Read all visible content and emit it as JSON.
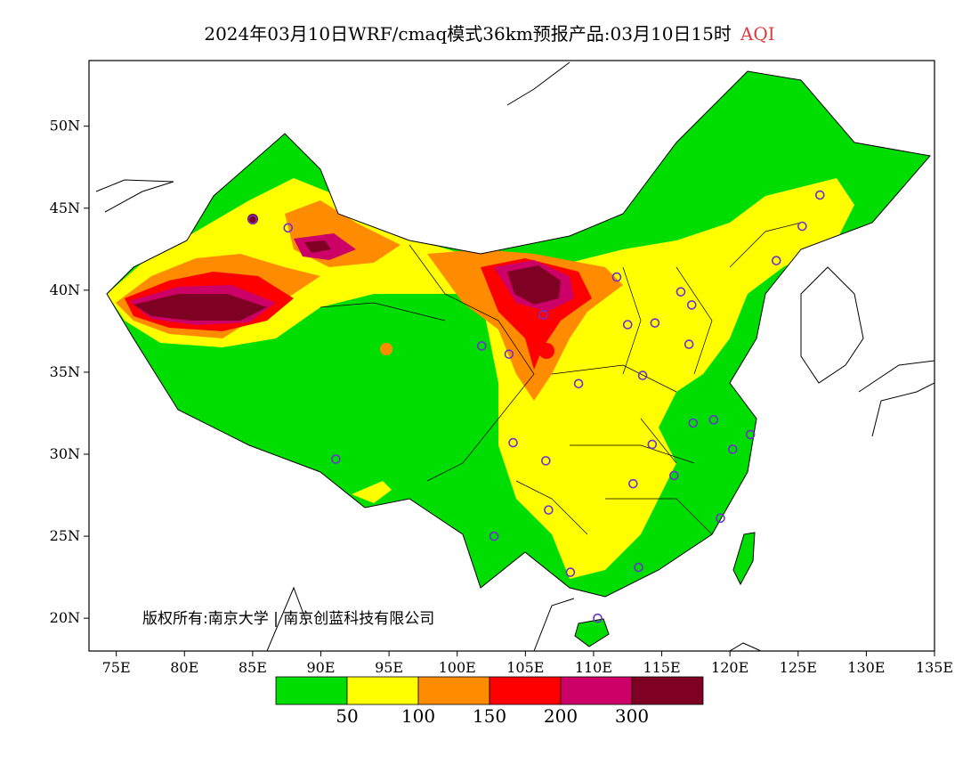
{
  "title": {
    "main": "2024年03月10日WRF/cmaq模式36km预报产品:03月10日15时",
    "variable": "AQI"
  },
  "axes": {
    "lon_labels": [
      "75E",
      "80E",
      "85E",
      "90E",
      "95E",
      "100E",
      "105E",
      "110E",
      "115E",
      "120E",
      "125E",
      "130E",
      "135E"
    ],
    "lat_labels": [
      "20N",
      "25N",
      "30N",
      "35N",
      "40N",
      "45N",
      "50N"
    ],
    "lon_range": [
      73,
      135
    ],
    "lat_range": [
      18,
      54
    ]
  },
  "copyright": "版权所有:南京大学 | 南京创蓝科技有限公司",
  "legend": {
    "colors": [
      "#00dd00",
      "#ffff00",
      "#ff8c00",
      "#ff0000",
      "#cc0066",
      "#7e0023"
    ],
    "labels": [
      "50",
      "100",
      "150",
      "200",
      "300"
    ]
  },
  "colors": {
    "good": "#00dd00",
    "moderate": "#ffff00",
    "usg": "#ff8c00",
    "unhealthy": "#ff0000",
    "very_unhealthy": "#cc0066",
    "hazardous": "#7e0023",
    "station_marker": "#7030d0"
  },
  "stations": [
    {
      "lon": 87.6,
      "lat": 43.8
    },
    {
      "lon": 91.1,
      "lat": 29.7
    },
    {
      "lon": 101.8,
      "lat": 36.6
    },
    {
      "lon": 103.8,
      "lat": 36.1
    },
    {
      "lon": 106.3,
      "lat": 38.5
    },
    {
      "lon": 111.7,
      "lat": 40.8
    },
    {
      "lon": 104.1,
      "lat": 30.7
    },
    {
      "lon": 106.5,
      "lat": 29.6
    },
    {
      "lon": 108.9,
      "lat": 34.3
    },
    {
      "lon": 112.5,
      "lat": 37.9
    },
    {
      "lon": 114.5,
      "lat": 38.0
    },
    {
      "lon": 116.4,
      "lat": 39.9
    },
    {
      "lon": 117.2,
      "lat": 39.1
    },
    {
      "lon": 117.0,
      "lat": 36.7
    },
    {
      "lon": 113.6,
      "lat": 34.8
    },
    {
      "lon": 114.3,
      "lat": 30.6
    },
    {
      "lon": 112.9,
      "lat": 28.2
    },
    {
      "lon": 115.9,
      "lat": 28.7
    },
    {
      "lon": 117.3,
      "lat": 31.9
    },
    {
      "lon": 118.8,
      "lat": 32.1
    },
    {
      "lon": 121.5,
      "lat": 31.2
    },
    {
      "lon": 120.2,
      "lat": 30.3
    },
    {
      "lon": 119.3,
      "lat": 26.1
    },
    {
      "lon": 113.3,
      "lat": 23.1
    },
    {
      "lon": 108.3,
      "lat": 22.8
    },
    {
      "lon": 110.3,
      "lat": 20.0
    },
    {
      "lon": 102.7,
      "lat": 25.0
    },
    {
      "lon": 106.7,
      "lat": 26.6
    },
    {
      "lon": 123.4,
      "lat": 41.8
    },
    {
      "lon": 125.3,
      "lat": 43.9
    },
    {
      "lon": 126.6,
      "lat": 45.8
    },
    {
      "lon": 85.0,
      "lat": 44.3
    }
  ]
}
